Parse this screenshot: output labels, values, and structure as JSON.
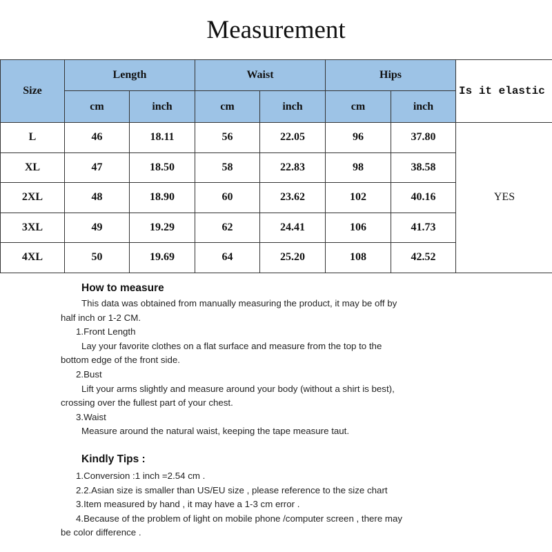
{
  "title": "Measurement",
  "table": {
    "size_header": "Size",
    "groups": [
      "Length",
      "Waist",
      "Hips"
    ],
    "units": [
      "cm",
      "inch",
      "cm",
      "inch",
      "cm",
      "inch"
    ],
    "elastic_header": "Is it elastic",
    "elastic_value": "YES",
    "rows": [
      [
        "L",
        "46",
        "18.11",
        "56",
        "22.05",
        "96",
        "37.80"
      ],
      [
        "XL",
        "47",
        "18.50",
        "58",
        "22.83",
        "98",
        "38.58"
      ],
      [
        "2XL",
        "48",
        "18.90",
        "60",
        "23.62",
        "102",
        "40.16"
      ],
      [
        "3XL",
        "49",
        "19.29",
        "62",
        "24.41",
        "106",
        "41.73"
      ],
      [
        "4XL",
        "50",
        "19.69",
        "64",
        "25.20",
        "108",
        "42.52"
      ]
    ],
    "header_color": "#9dc3e6"
  },
  "how_to_measure": {
    "heading": "How to measure",
    "lines": [
      "This data was obtained from manually measuring the product, it may be off by",
      "half inch or 1-2 CM.",
      "1.Front Length",
      "Lay your favorite clothes on a flat surface and measure from the top to the",
      "bottom edge of the front side.",
      "2.Bust",
      "Lift your arms slightly and measure around your body (without a shirt is best),",
      "crossing over the fullest part of your chest.",
      "3.Waist",
      "Measure around the natural waist, keeping the tape measure taut."
    ]
  },
  "tips": {
    "heading": "Kindly Tips :",
    "lines": [
      "1.Conversion :1 inch =2.54 cm .",
      "2.2.Asian size is smaller than US/EU size , please reference to the size chart",
      "3.Item measured by hand , it may have a 1-3 cm error .",
      "4.Because of the problem of light on mobile phone /computer screen , there may",
      "be  color difference ."
    ]
  }
}
